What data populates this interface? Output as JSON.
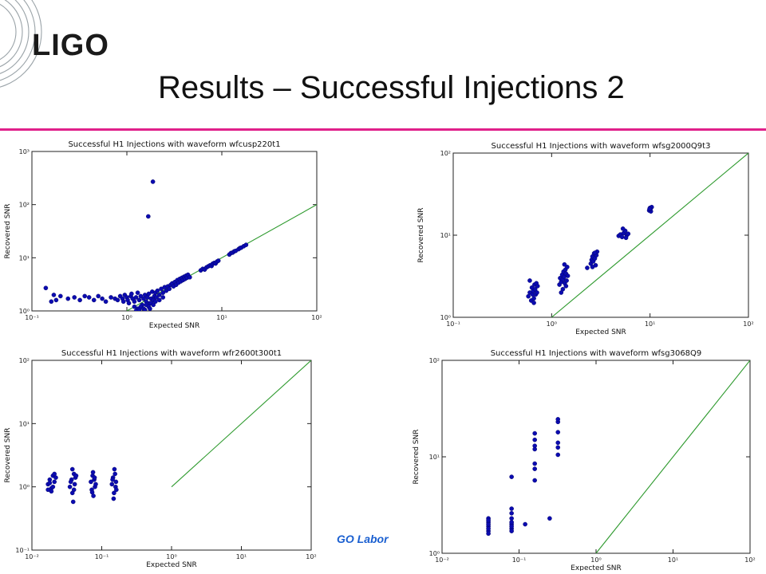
{
  "slide": {
    "logo": "LIGO",
    "title": "Results – Successful Injections 2",
    "footer_text": "GO Labor",
    "accent_color": "#e0208a",
    "footer_color": "#1a5fd0"
  },
  "chart_data": [
    {
      "type": "scatter",
      "title": "Successful H1 Injections with waveform wfcusp220t1",
      "xlabel": "Expected SNR",
      "ylabel": "Recovered SNR",
      "xscale": "log",
      "yscale": "log",
      "xlim": [
        0.1,
        100
      ],
      "ylim": [
        1,
        1000
      ],
      "xticks": [
        "10^-1",
        "10^0",
        "10^1",
        "10^2"
      ],
      "yticks": [
        "10^0",
        "10^1",
        "10^2",
        "10^3"
      ],
      "grid": false,
      "marker_color": "#0b0bb0",
      "line_color": "#2e9a2e",
      "reference_line": {
        "x": [
          1,
          100
        ],
        "y": [
          1,
          100
        ]
      },
      "points": [
        [
          0.14,
          2.7
        ],
        [
          0.16,
          1.5
        ],
        [
          0.17,
          2.0
        ],
        [
          0.18,
          1.6
        ],
        [
          0.2,
          1.9
        ],
        [
          0.24,
          1.7
        ],
        [
          0.28,
          1.8
        ],
        [
          0.32,
          1.6
        ],
        [
          0.36,
          1.9
        ],
        [
          0.4,
          1.8
        ],
        [
          0.45,
          1.6
        ],
        [
          0.5,
          1.9
        ],
        [
          0.55,
          1.7
        ],
        [
          0.6,
          1.5
        ],
        [
          0.68,
          1.8
        ],
        [
          0.75,
          1.7
        ],
        [
          0.8,
          1.6
        ],
        [
          0.85,
          1.9
        ],
        [
          0.9,
          1.7
        ],
        [
          0.92,
          1.5
        ],
        [
          0.95,
          2.0
        ],
        [
          1.0,
          1.8
        ],
        [
          1.02,
          1.6
        ],
        [
          1.05,
          1.4
        ],
        [
          1.1,
          1.9
        ],
        [
          1.12,
          2.1
        ],
        [
          1.15,
          1.7
        ],
        [
          1.2,
          1.5
        ],
        [
          1.25,
          1.8
        ],
        [
          1.3,
          2.2
        ],
        [
          1.35,
          1.6
        ],
        [
          1.4,
          1.9
        ],
        [
          1.45,
          1.3
        ],
        [
          1.5,
          1.7
        ],
        [
          1.55,
          2.0
        ],
        [
          1.6,
          1.5
        ],
        [
          1.65,
          1.8
        ],
        [
          1.7,
          2.1
        ],
        [
          1.75,
          1.4
        ],
        [
          1.8,
          1.7
        ],
        [
          1.85,
          2.3
        ],
        [
          1.9,
          1.6
        ],
        [
          1.95,
          1.9
        ],
        [
          2.0,
          2.2
        ],
        [
          2.05,
          1.8
        ],
        [
          2.1,
          2.4
        ],
        [
          2.2,
          2.0
        ],
        [
          2.3,
          2.6
        ],
        [
          2.4,
          2.2
        ],
        [
          2.5,
          2.8
        ],
        [
          2.6,
          2.4
        ],
        [
          2.7,
          2.9
        ],
        [
          2.8,
          2.6
        ],
        [
          2.9,
          3.1
        ],
        [
          3.0,
          3.3
        ],
        [
          3.1,
          2.9
        ],
        [
          3.2,
          3.5
        ],
        [
          3.3,
          3.1
        ],
        [
          3.4,
          3.8
        ],
        [
          3.5,
          3.4
        ],
        [
          3.6,
          4.0
        ],
        [
          3.7,
          3.6
        ],
        [
          3.8,
          4.2
        ],
        [
          3.9,
          3.8
        ],
        [
          4.0,
          4.4
        ],
        [
          4.1,
          4.0
        ],
        [
          4.2,
          4.6
        ],
        [
          4.3,
          4.2
        ],
        [
          4.4,
          4.8
        ],
        [
          4.6,
          4.3
        ],
        [
          1.2,
          1.2
        ],
        [
          1.3,
          1.1
        ],
        [
          1.4,
          1.2
        ],
        [
          1.5,
          1.1
        ],
        [
          1.6,
          1.3
        ],
        [
          1.7,
          1.2
        ],
        [
          1.8,
          1.4
        ],
        [
          1.9,
          1.3
        ],
        [
          1.25,
          1.0
        ],
        [
          1.35,
          1.05
        ],
        [
          1.55,
          1.05
        ],
        [
          1.75,
          1.1
        ],
        [
          2.0,
          1.5
        ],
        [
          2.2,
          1.6
        ],
        [
          2.4,
          1.8
        ],
        [
          6.0,
          5.8
        ],
        [
          6.3,
          6.2
        ],
        [
          6.6,
          6.0
        ],
        [
          6.9,
          6.6
        ],
        [
          7.2,
          6.9
        ],
        [
          7.5,
          7.2
        ],
        [
          7.8,
          7.0
        ],
        [
          8.0,
          7.7
        ],
        [
          8.3,
          8.0
        ],
        [
          8.6,
          7.8
        ],
        [
          8.9,
          8.5
        ],
        [
          9.2,
          8.8
        ],
        [
          12.0,
          11.5
        ],
        [
          12.5,
          12.3
        ],
        [
          13.0,
          12.5
        ],
        [
          13.5,
          13.2
        ],
        [
          14.0,
          13.5
        ],
        [
          15.0,
          14.5
        ],
        [
          15.5,
          15.2
        ],
        [
          16.0,
          15.5
        ],
        [
          17.0,
          16.5
        ],
        [
          18.0,
          17.5
        ],
        [
          1.68,
          60
        ],
        [
          1.88,
          270
        ]
      ]
    },
    {
      "type": "scatter",
      "title": "Successful H1 Injections with waveform wfsg2000Q9t3",
      "xlabel": "Expected SNR",
      "ylabel": "Recovered SNR",
      "xscale": "log",
      "yscale": "log",
      "xlim": [
        0.1,
        100
      ],
      "ylim": [
        1,
        100
      ],
      "xticks": [
        "10^-1",
        "10^0",
        "10^1",
        "10^2"
      ],
      "yticks": [
        "10^0",
        "10^1",
        "10^2"
      ],
      "grid": false,
      "marker_color": "#0b0bb0",
      "line_color": "#2e9a2e",
      "reference_line": {
        "x": [
          1,
          100
        ],
        "y": [
          1,
          100
        ]
      },
      "points": [
        [
          0.58,
          1.8
        ],
        [
          0.6,
          2.0
        ],
        [
          0.62,
          1.6
        ],
        [
          0.63,
          2.3
        ],
        [
          0.64,
          1.9
        ],
        [
          0.65,
          2.1
        ],
        [
          0.66,
          1.7
        ],
        [
          0.67,
          2.5
        ],
        [
          0.68,
          2.2
        ],
        [
          0.69,
          1.9
        ],
        [
          0.7,
          2.6
        ],
        [
          0.71,
          2.0
        ],
        [
          0.72,
          2.4
        ],
        [
          0.6,
          2.8
        ],
        [
          0.66,
          1.5
        ],
        [
          1.2,
          2.5
        ],
        [
          1.22,
          3.0
        ],
        [
          1.25,
          2.7
        ],
        [
          1.28,
          3.3
        ],
        [
          1.3,
          2.9
        ],
        [
          1.32,
          3.6
        ],
        [
          1.34,
          3.1
        ],
        [
          1.36,
          2.6
        ],
        [
          1.38,
          3.8
        ],
        [
          1.4,
          3.4
        ],
        [
          1.42,
          2.8
        ],
        [
          1.44,
          4.1
        ],
        [
          1.46,
          3.2
        ],
        [
          1.3,
          2.2
        ],
        [
          1.35,
          4.4
        ],
        [
          1.25,
          2.0
        ],
        [
          1.4,
          2.4
        ],
        [
          2.5,
          4.5
        ],
        [
          2.55,
          5.0
        ],
        [
          2.6,
          5.5
        ],
        [
          2.65,
          4.8
        ],
        [
          2.7,
          6.0
        ],
        [
          2.75,
          5.2
        ],
        [
          2.8,
          4.3
        ],
        [
          2.85,
          5.7
        ],
        [
          2.9,
          6.3
        ],
        [
          2.6,
          4.1
        ],
        [
          2.75,
          6.1
        ],
        [
          2.3,
          4.0
        ],
        [
          4.8,
          9.8
        ],
        [
          5.0,
          10.2
        ],
        [
          5.2,
          9.5
        ],
        [
          5.4,
          10.6
        ],
        [
          5.6,
          11.3
        ],
        [
          5.8,
          10.0
        ],
        [
          6.0,
          10.4
        ],
        [
          5.3,
          12.0
        ],
        [
          5.7,
          9.3
        ],
        [
          9.8,
          20.0
        ],
        [
          10.0,
          21.5
        ],
        [
          10.2,
          19.5
        ],
        [
          10.4,
          22.0
        ],
        [
          10.1,
          20.8
        ],
        [
          9.9,
          21.0
        ]
      ]
    },
    {
      "type": "scatter",
      "title": "Successful H1 Injections with waveform wfr2600t300t1",
      "xlabel": "Expected SNR",
      "ylabel": "Recovered SNR",
      "xscale": "log",
      "yscale": "log",
      "xlim": [
        0.01,
        100
      ],
      "ylim": [
        0.1,
        100
      ],
      "xticks": [
        "10^-2",
        "10^-1",
        "10^0",
        "10^1",
        "10^2"
      ],
      "yticks": [
        "10^-1",
        "10^0",
        "10^1",
        "10^2"
      ],
      "grid": false,
      "marker_color": "#0b0bb0",
      "line_color": "#2e9a2e",
      "reference_line": {
        "x": [
          1,
          100
        ],
        "y": [
          1,
          100
        ]
      },
      "points": [
        [
          0.017,
          1.1
        ],
        [
          0.018,
          1.3
        ],
        [
          0.019,
          0.95
        ],
        [
          0.02,
          1.5
        ],
        [
          0.021,
          1.2
        ],
        [
          0.019,
          0.85
        ],
        [
          0.02,
          1.0
        ],
        [
          0.022,
          1.4
        ],
        [
          0.018,
          1.15
        ],
        [
          0.021,
          1.6
        ],
        [
          0.017,
          0.9
        ],
        [
          0.035,
          1.0
        ],
        [
          0.037,
          1.3
        ],
        [
          0.038,
          0.8
        ],
        [
          0.04,
          1.6
        ],
        [
          0.041,
          1.1
        ],
        [
          0.039,
          0.58
        ],
        [
          0.042,
          1.4
        ],
        [
          0.038,
          1.9
        ],
        [
          0.036,
          1.2
        ],
        [
          0.04,
          0.9
        ],
        [
          0.043,
          1.5
        ],
        [
          0.07,
          1.2
        ],
        [
          0.072,
          0.9
        ],
        [
          0.074,
          1.5
        ],
        [
          0.076,
          0.72
        ],
        [
          0.078,
          1.3
        ],
        [
          0.08,
          1.0
        ],
        [
          0.075,
          1.7
        ],
        [
          0.082,
          1.1
        ],
        [
          0.073,
          0.82
        ],
        [
          0.079,
          1.4
        ],
        [
          0.14,
          1.1
        ],
        [
          0.145,
          1.4
        ],
        [
          0.15,
          0.8
        ],
        [
          0.155,
          1.6
        ],
        [
          0.16,
          1.2
        ],
        [
          0.148,
          0.65
        ],
        [
          0.152,
          1.9
        ],
        [
          0.158,
          1.0
        ],
        [
          0.143,
          1.3
        ],
        [
          0.162,
          0.9
        ]
      ]
    },
    {
      "type": "scatter",
      "title": "Successful H1 Injections with waveform wfsg3068Q9",
      "xlabel": "Expected SNR",
      "ylabel": "Recovered SNR",
      "xscale": "log",
      "yscale": "log",
      "xlim": [
        0.01,
        100
      ],
      "ylim": [
        1,
        100
      ],
      "xticks": [
        "10^-2",
        "10^-1",
        "10^0",
        "10^1",
        "10^2"
      ],
      "yticks": [
        "10^0",
        "10^1",
        "10^2"
      ],
      "grid": false,
      "marker_color": "#0b0bb0",
      "line_color": "#2e9a2e",
      "reference_line": {
        "x": [
          1,
          100
        ],
        "y": [
          1,
          100
        ]
      },
      "points": [
        [
          0.04,
          1.7
        ],
        [
          0.04,
          1.9
        ],
        [
          0.04,
          2.1
        ],
        [
          0.04,
          1.8
        ],
        [
          0.04,
          2.3
        ],
        [
          0.04,
          2.0
        ],
        [
          0.04,
          1.6
        ],
        [
          0.04,
          2.2
        ],
        [
          0.08,
          1.8
        ],
        [
          0.08,
          2.0
        ],
        [
          0.08,
          2.3
        ],
        [
          0.08,
          2.6
        ],
        [
          0.08,
          1.7
        ],
        [
          0.08,
          2.9
        ],
        [
          0.08,
          2.1
        ],
        [
          0.08,
          1.9
        ],
        [
          0.08,
          6.2
        ],
        [
          0.12,
          2.0
        ],
        [
          0.16,
          5.7
        ],
        [
          0.16,
          7.5
        ],
        [
          0.16,
          8.5
        ],
        [
          0.16,
          12
        ],
        [
          0.16,
          13
        ],
        [
          0.16,
          15
        ],
        [
          0.16,
          17.5
        ],
        [
          0.25,
          2.3
        ],
        [
          0.32,
          10.5
        ],
        [
          0.32,
          12.5
        ],
        [
          0.32,
          14
        ],
        [
          0.32,
          18
        ],
        [
          0.32,
          23
        ],
        [
          0.32,
          24.5
        ]
      ]
    }
  ]
}
